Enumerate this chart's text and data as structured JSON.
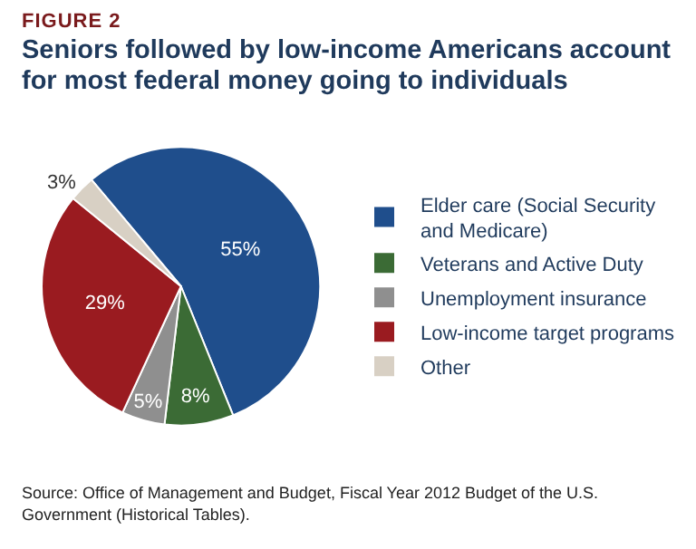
{
  "chart_data": {
    "type": "pie",
    "subtitle": "FIGURE 2",
    "title": "Seniors followed by low-income Americans account for most federal money going to individuals",
    "categories": [
      "Elder care (Social Security and Medicare)",
      "Veterans and Active Duty",
      "Unemployment insurance",
      "Low-income target programs",
      "Other"
    ],
    "values": [
      55,
      8,
      5,
      29,
      3
    ],
    "value_labels": [
      "55%",
      "8%",
      "5%",
      "29%",
      "3%"
    ],
    "colors": [
      "#1f4e8c",
      "#3b6b35",
      "#8f8f8f",
      "#9a1b20",
      "#d8d0c4"
    ],
    "legend": "right",
    "annotations": [
      "Source:  Office of Management and Budget, Fiscal Year 2012 Budget of the U.S. Government (Historical Tables)."
    ]
  }
}
